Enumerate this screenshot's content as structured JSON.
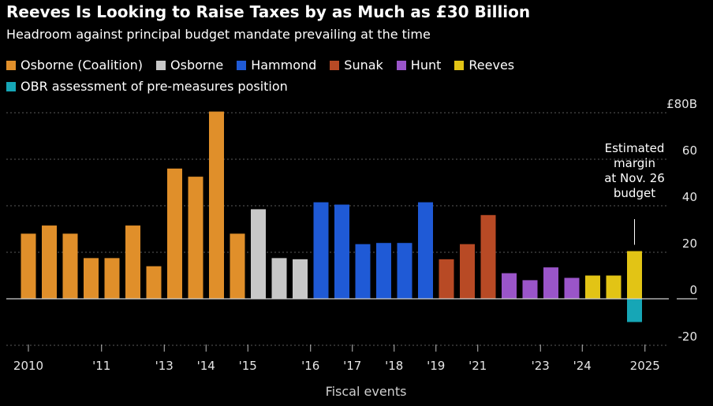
{
  "title": "Reeves Is Looking to Raise Taxes by as Much as £30 Billion",
  "subtitle": "Headroom against principal budget mandate prevailing at the time",
  "legend": [
    {
      "label": "Osborne (Coalition)",
      "color": "#e08f2a"
    },
    {
      "label": "Osborne",
      "color": "#c8c8c8"
    },
    {
      "label": "Hammond",
      "color": "#1f5ad6"
    },
    {
      "label": "Sunak",
      "color": "#b84a25"
    },
    {
      "label": "Hunt",
      "color": "#9a55c9"
    },
    {
      "label": "Reeves",
      "color": "#e2c415"
    },
    {
      "label": "OBR assessment of pre-measures position",
      "color": "#16a6b6"
    }
  ],
  "chart_data": {
    "type": "bar",
    "title": "Reeves Is Looking to Raise Taxes by as Much as £30 Billion",
    "subtitle": "Headroom against principal budget mandate prevailing at the time",
    "xlabel": "Fiscal events",
    "ylabel": "£B",
    "ylim": [
      -20,
      80
    ],
    "yticks": [
      {
        "value": 80,
        "label": "£80B"
      },
      {
        "value": 60,
        "label": "60"
      },
      {
        "value": 40,
        "label": "40"
      },
      {
        "value": 20,
        "label": "20"
      },
      {
        "value": 0,
        "label": "0"
      },
      {
        "value": -20,
        "label": "-20"
      }
    ],
    "xticks": [
      {
        "slot": 0,
        "label": "2010"
      },
      {
        "slot": 3.5,
        "label": "'11"
      },
      {
        "slot": 6.5,
        "label": "'13"
      },
      {
        "slot": 8.5,
        "label": "'14"
      },
      {
        "slot": 10.5,
        "label": "'15"
      },
      {
        "slot": 13.5,
        "label": "'16"
      },
      {
        "slot": 15.5,
        "label": "'17"
      },
      {
        "slot": 17.5,
        "label": "'18"
      },
      {
        "slot": 19.5,
        "label": "'19"
      },
      {
        "slot": 21.5,
        "label": "'21"
      },
      {
        "slot": 24.5,
        "label": "'23"
      },
      {
        "slot": 26.5,
        "label": "'24"
      },
      {
        "slot": 29.5,
        "label": "2025"
      }
    ],
    "series": [
      {
        "name": "Osborne (Coalition)",
        "color": "#e08f2a",
        "points": [
          {
            "slot": 0,
            "value": 28
          },
          {
            "slot": 1,
            "value": 31.5
          },
          {
            "slot": 2,
            "value": 28
          },
          {
            "slot": 3,
            "value": 17.5
          },
          {
            "slot": 4,
            "value": 17.5
          },
          {
            "slot": 5,
            "value": 31.5
          },
          {
            "slot": 6,
            "value": 14
          },
          {
            "slot": 7,
            "value": 56
          },
          {
            "slot": 8,
            "value": 52.5
          },
          {
            "slot": 9,
            "value": 80.5
          },
          {
            "slot": 10,
            "value": 28
          }
        ]
      },
      {
        "name": "Osborne",
        "color": "#c8c8c8",
        "points": [
          {
            "slot": 11,
            "value": 38.5
          },
          {
            "slot": 12,
            "value": 17.5
          },
          {
            "slot": 13,
            "value": 17
          }
        ]
      },
      {
        "name": "Hammond",
        "color": "#1f5ad6",
        "points": [
          {
            "slot": 14,
            "value": 41.5
          },
          {
            "slot": 15,
            "value": 40.5
          },
          {
            "slot": 16,
            "value": 23.5
          },
          {
            "slot": 17,
            "value": 24
          },
          {
            "slot": 18,
            "value": 24
          },
          {
            "slot": 19,
            "value": 41.5
          }
        ]
      },
      {
        "name": "Sunak",
        "color": "#b84a25",
        "points": [
          {
            "slot": 20,
            "value": 17
          },
          {
            "slot": 21,
            "value": 23.5
          },
          {
            "slot": 22,
            "value": 36
          }
        ]
      },
      {
        "name": "Hunt",
        "color": "#9a55c9",
        "points": [
          {
            "slot": 23,
            "value": 11
          },
          {
            "slot": 24,
            "value": 8
          },
          {
            "slot": 25,
            "value": 13.5
          },
          {
            "slot": 26,
            "value": 9
          }
        ]
      },
      {
        "name": "Reeves",
        "color": "#e2c415",
        "points": [
          {
            "slot": 27,
            "value": 10
          },
          {
            "slot": 28,
            "value": 10
          },
          {
            "slot": 29,
            "value": 20.5
          }
        ]
      },
      {
        "name": "OBR assessment of pre-measures position",
        "color": "#16a6b6",
        "points": [
          {
            "slot": 29,
            "value": -10
          }
        ]
      }
    ],
    "annotation": {
      "slot": 29,
      "value": 20.5,
      "lines": [
        "Estimated",
        "margin",
        "at Nov. 26",
        "budget"
      ]
    }
  }
}
